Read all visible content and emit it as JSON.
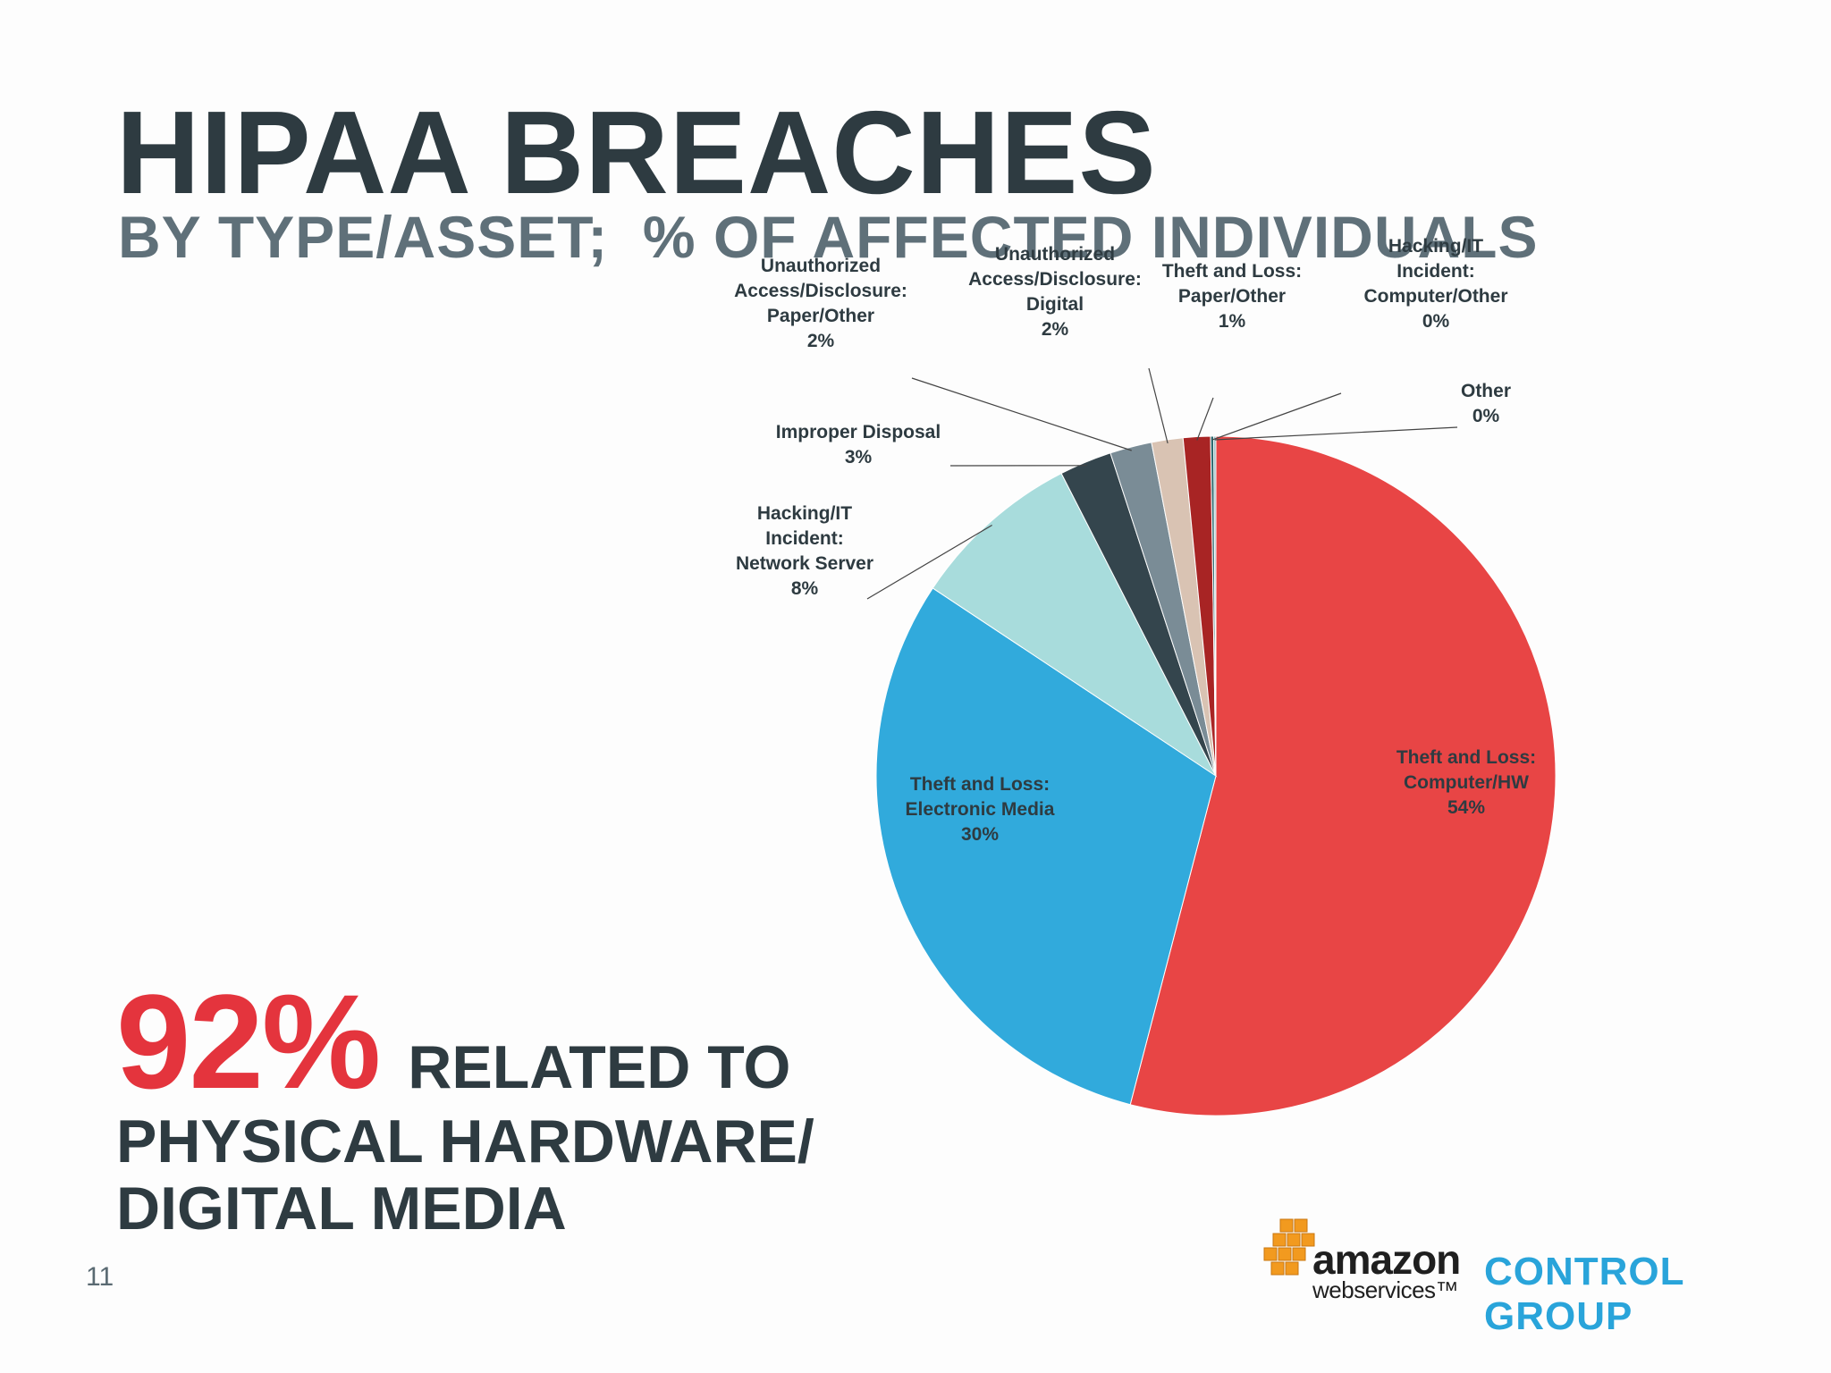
{
  "slide": {
    "title": "HIPAA BREACHES",
    "subtitle": "BY TYPE/ASSET;  % OF AFFECTED INDIVIDUALS",
    "callout": {
      "percent": "92%",
      "text_line1": "RELATED TO",
      "text_line2": "PHYSICAL HARDWARE/",
      "text_line3": "DIGITAL MEDIA"
    },
    "page_number": "11",
    "logos": {
      "aws_line1": "amazon",
      "aws_line2": "webservices™",
      "control_group": "CONTROL GROUP"
    }
  },
  "colors": {
    "title": "#2e3b41",
    "subtitle": "#5f7079",
    "accent_red": "#e4343d",
    "control_group_blue": "#29a4da"
  },
  "chart_data": {
    "type": "pie",
    "title": "",
    "slices": [
      {
        "label_lines": [
          "Theft and Loss:",
          "Computer/HW"
        ],
        "value": 54.3,
        "display": "54%",
        "color": "#e84545"
      },
      {
        "label_lines": [
          "Theft and Loss:",
          "Electronic Media"
        ],
        "value": 30.4,
        "display": "30%",
        "color": "#31aadc"
      },
      {
        "label_lines": [
          "Hacking/IT",
          "Incident:",
          "Network Server"
        ],
        "value": 8.2,
        "display": "8%",
        "color": "#a8dcdc"
      },
      {
        "label_lines": [
          "Improper Disposal"
        ],
        "value": 2.5,
        "display": "3%",
        "color": "#34454d"
      },
      {
        "label_lines": [
          "Unauthorized",
          "Access/Disclosure:",
          "Paper/Other"
        ],
        "value": 2.0,
        "display": "2%",
        "color": "#7a8c96"
      },
      {
        "label_lines": [
          "Unauthorized",
          "Access/Disclosure:",
          "Digital"
        ],
        "value": 1.5,
        "display": "2%",
        "color": "#d9c3b3"
      },
      {
        "label_lines": [
          "Theft and Loss:",
          "Paper/Other"
        ],
        "value": 1.3,
        "display": "1%",
        "color": "#a82424"
      },
      {
        "label_lines": [
          "Hacking/IT",
          "Incident:",
          "Computer/Other"
        ],
        "value": 0.15,
        "display": "0%",
        "color": "#2f6b71"
      },
      {
        "label_lines": [
          "Other"
        ],
        "value": 0.1,
        "display": "0%",
        "color": "#8ab7bf"
      }
    ]
  }
}
